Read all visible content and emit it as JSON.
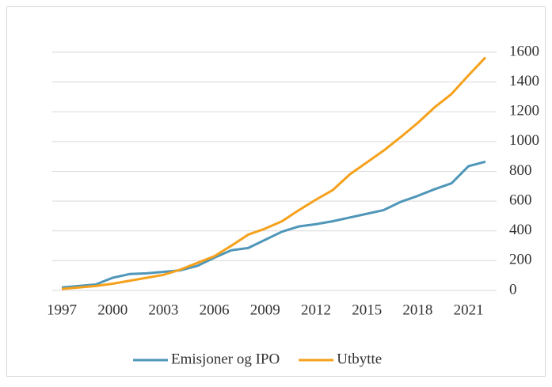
{
  "chart_data": {
    "type": "line",
    "x": [
      1997,
      1998,
      1999,
      2000,
      2001,
      2002,
      2003,
      2004,
      2005,
      2006,
      2007,
      2008,
      2009,
      2010,
      2011,
      2012,
      2013,
      2014,
      2015,
      2016,
      2017,
      2018,
      2019,
      2020,
      2021,
      2022
    ],
    "series": [
      {
        "name": "Emisjoner og IPO",
        "color": "#4f96b9",
        "values": [
          20,
          30,
          40,
          85,
          110,
          115,
          125,
          135,
          165,
          220,
          270,
          285,
          340,
          395,
          430,
          445,
          465,
          490,
          515,
          540,
          595,
          635,
          680,
          720,
          835,
          865
        ]
      },
      {
        "name": "Utbytte",
        "color": "#f5a11c",
        "values": [
          10,
          20,
          30,
          45,
          65,
          85,
          105,
          140,
          185,
          230,
          300,
          375,
          415,
          465,
          540,
          610,
          675,
          780,
          860,
          940,
          1030,
          1125,
          1230,
          1320,
          1445,
          1565
        ]
      }
    ],
    "xlim": [
      1997,
      2022
    ],
    "xticks": [
      1997,
      2000,
      2003,
      2006,
      2009,
      2012,
      2015,
      2018,
      2021
    ],
    "ylim": [
      0,
      1600
    ],
    "yticks": [
      0,
      200,
      400,
      600,
      800,
      1000,
      1200,
      1400,
      1600
    ],
    "grid": true,
    "legend": "bottom"
  }
}
